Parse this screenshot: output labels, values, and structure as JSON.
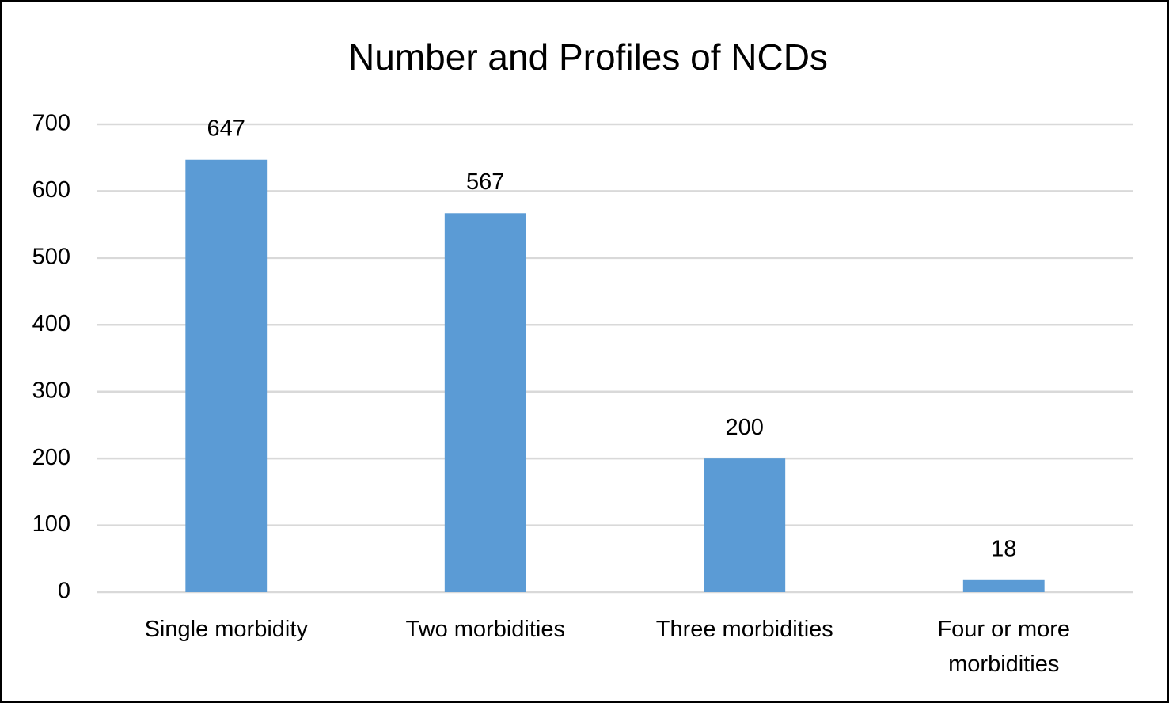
{
  "chart_data": {
    "type": "bar",
    "title": "Number and Profiles of NCDs",
    "categories": [
      "Single morbidity",
      "Two morbidities",
      "Three morbidities",
      "Four or more morbidities"
    ],
    "values": [
      647,
      567,
      200,
      18
    ],
    "color": "#5b9bd5",
    "ylim": [
      0,
      700
    ],
    "yticks": [
      0,
      100,
      200,
      300,
      400,
      500,
      600,
      700
    ],
    "grid": true
  }
}
